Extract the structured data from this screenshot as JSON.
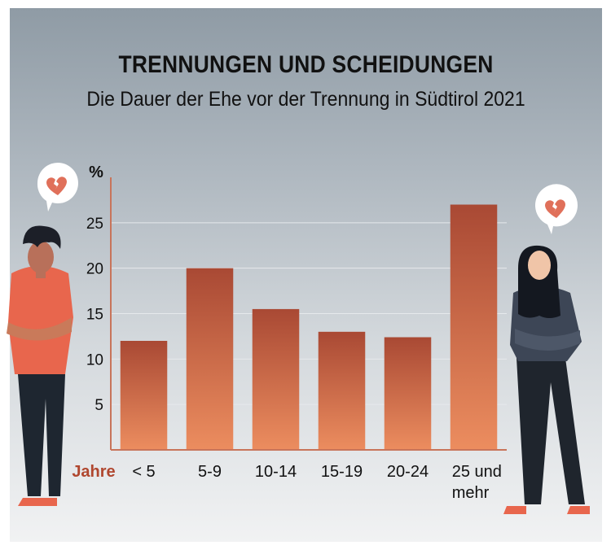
{
  "header": {
    "title": "TRENNUNGEN UND SCHEIDUNGEN",
    "subtitle": "Die Dauer der Ehe vor der Trennung in Südtirol 2021"
  },
  "colors": {
    "bar_top": "#a94934",
    "bar_bottom": "#ec8d5f",
    "axis_label": "#b0472f",
    "heart": "#e0705a"
  },
  "chart_data": {
    "type": "bar",
    "title": "TRENNUNGEN UND SCHEIDUNGEN",
    "subtitle": "Die Dauer der Ehe vor der Trennung in Südtirol 2021",
    "ylabel": "%",
    "xlabel": "Jahre",
    "categories": [
      "< 5",
      "5-9",
      "10-14",
      "15-19",
      "20-24",
      "25 und mehr"
    ],
    "category_lines": [
      [
        "< 5"
      ],
      [
        "5-9"
      ],
      [
        "10-14"
      ],
      [
        "15-19"
      ],
      [
        "20-24"
      ],
      [
        "25 und",
        "mehr"
      ]
    ],
    "values": [
      12.0,
      20.0,
      15.5,
      13.0,
      12.4,
      27.0
    ],
    "yticks": [
      "5",
      "10",
      "15",
      "20",
      "25"
    ],
    "ylim": [
      0,
      30
    ],
    "grid": true,
    "legend": "none"
  },
  "icons": {
    "left_bubble": "broken-heart-icon",
    "right_bubble": "broken-heart-icon"
  }
}
